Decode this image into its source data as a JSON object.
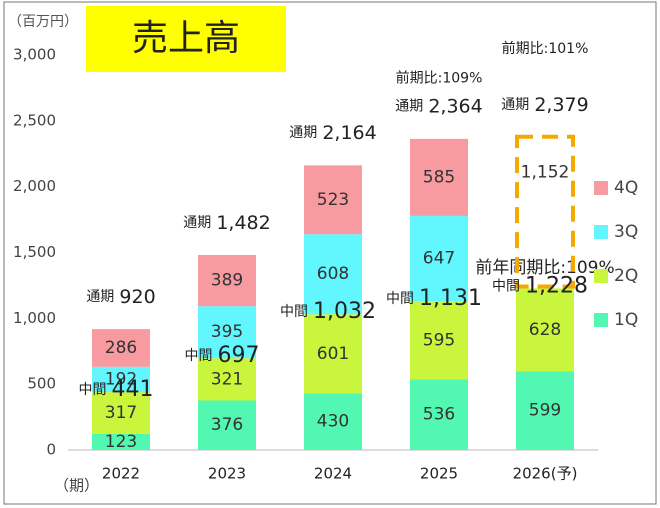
{
  "chart_data": {
    "type": "stacked_bar",
    "title": "売上高",
    "y_unit": "（百万円）",
    "x_unit": "（期）",
    "categories": [
      "2022",
      "2023",
      "2024",
      "2025",
      "2026(予)"
    ],
    "series": [
      {
        "name": "1Q",
        "color": "#52f7b2",
        "values": [
          123,
          376,
          430,
          536,
          599
        ]
      },
      {
        "name": "2Q",
        "color": "#c9f53c",
        "values": [
          317,
          321,
          601,
          595,
          628
        ]
      },
      {
        "name": "3Q",
        "color": "#62f6ff",
        "values": [
          192,
          395,
          608,
          647,
          null
        ]
      },
      {
        "name": "4Q",
        "color": "#f79ba0",
        "values": [
          286,
          389,
          523,
          585,
          null
        ]
      }
    ],
    "forecast": {
      "color": "#f5a800",
      "values": [
        null,
        null,
        null,
        null,
        1152
      ],
      "value_labels": [
        null,
        null,
        null,
        null,
        "1,152"
      ]
    },
    "totals": {
      "label": "通期",
      "values": [
        920,
        1482,
        2164,
        2364,
        2379
      ],
      "value_labels": [
        "920",
        "1,482",
        "2,164",
        "2,364",
        "2,379"
      ]
    },
    "halves": {
      "label": "中間",
      "values": [
        441,
        697,
        1032,
        1131,
        1228
      ],
      "value_labels": [
        "441",
        "697",
        "1,032",
        "1,131",
        "1,228"
      ]
    },
    "yoy": [
      null,
      null,
      null,
      "前期比:109%",
      "前期比:101%"
    ],
    "half_yoy": "前年同期比:109%",
    "ylim": [
      0,
      3000
    ],
    "yticks": [
      0,
      {
        "value": 500,
        "label": "500"
      },
      {
        "value": 1000,
        "label": "1,000"
      },
      {
        "value": 1500,
        "label": "1,500"
      },
      {
        "value": 2000,
        "label": "2,000"
      },
      {
        "value": 2500,
        "label": "2,500"
      },
      {
        "value": 3000,
        "label": "3,000"
      }
    ],
    "grid": false
  }
}
